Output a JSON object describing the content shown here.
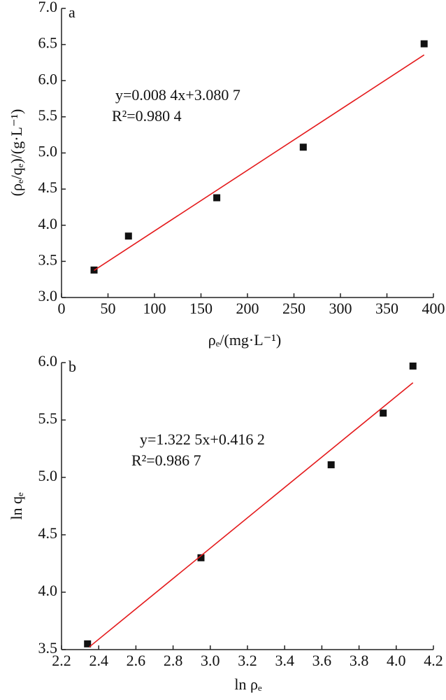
{
  "chart_data": [
    {
      "type": "scatter",
      "panel_label": "a",
      "xlabel": "ρₑ/(mg·L⁻¹)",
      "ylabel": "(ρₑ/qₑ)/(g·L⁻¹)",
      "annotations": [
        "y=0.008 4x+3.080 7",
        "R²=0.980 4"
      ],
      "xlim": [
        0,
        400
      ],
      "xticks": [
        0,
        50,
        100,
        150,
        200,
        250,
        300,
        350,
        400
      ],
      "ylim": [
        3,
        7
      ],
      "yticks": [
        {
          "value": 3,
          "label": "3.0"
        },
        3.5,
        {
          "value": 4,
          "label": "4.0"
        },
        4.5,
        {
          "value": 5,
          "label": "5.0"
        },
        5.5,
        {
          "value": 6,
          "label": "6.0"
        },
        6.5,
        {
          "value": 7,
          "label": "7.0"
        }
      ],
      "series": [
        {
          "style": "marker",
          "color": "#111111",
          "x": [
            35,
            72,
            167,
            260,
            390
          ],
          "values": [
            3.38,
            3.85,
            4.38,
            5.08,
            6.51
          ]
        },
        {
          "style": "line",
          "color": "#e41a1c",
          "x": [
            35,
            390
          ],
          "values": [
            3.3747,
            6.3567
          ]
        }
      ]
    },
    {
      "type": "scatter",
      "panel_label": "b",
      "xlabel": "ln ρₑ",
      "ylabel": "ln qₑ",
      "annotations": [
        "y=1.322 5x+0.416 2",
        "R²=0.986 7"
      ],
      "xlim": [
        2.2,
        4.2
      ],
      "xticks": [
        2.2,
        2.4,
        2.6,
        2.8,
        {
          "value": 3,
          "label": "3.0"
        },
        3.2,
        3.4,
        3.6,
        3.8,
        {
          "value": 4,
          "label": "4.0"
        },
        4.2
      ],
      "ylim": [
        3.5,
        6
      ],
      "yticks": [
        3.5,
        {
          "value": 4,
          "label": "4.0"
        },
        4.5,
        {
          "value": 5,
          "label": "5.0"
        },
        5.5,
        {
          "value": 6,
          "label": "6.0"
        }
      ],
      "series": [
        {
          "style": "marker",
          "color": "#111111",
          "x": [
            2.34,
            2.95,
            3.65,
            3.93,
            4.09
          ],
          "values": [
            3.55,
            4.3,
            5.11,
            5.56,
            5.97
          ]
        },
        {
          "style": "line",
          "color": "#e41a1c",
          "x": [
            2.35,
            4.09
          ],
          "values": [
            3.524,
            5.825
          ]
        }
      ]
    }
  ]
}
